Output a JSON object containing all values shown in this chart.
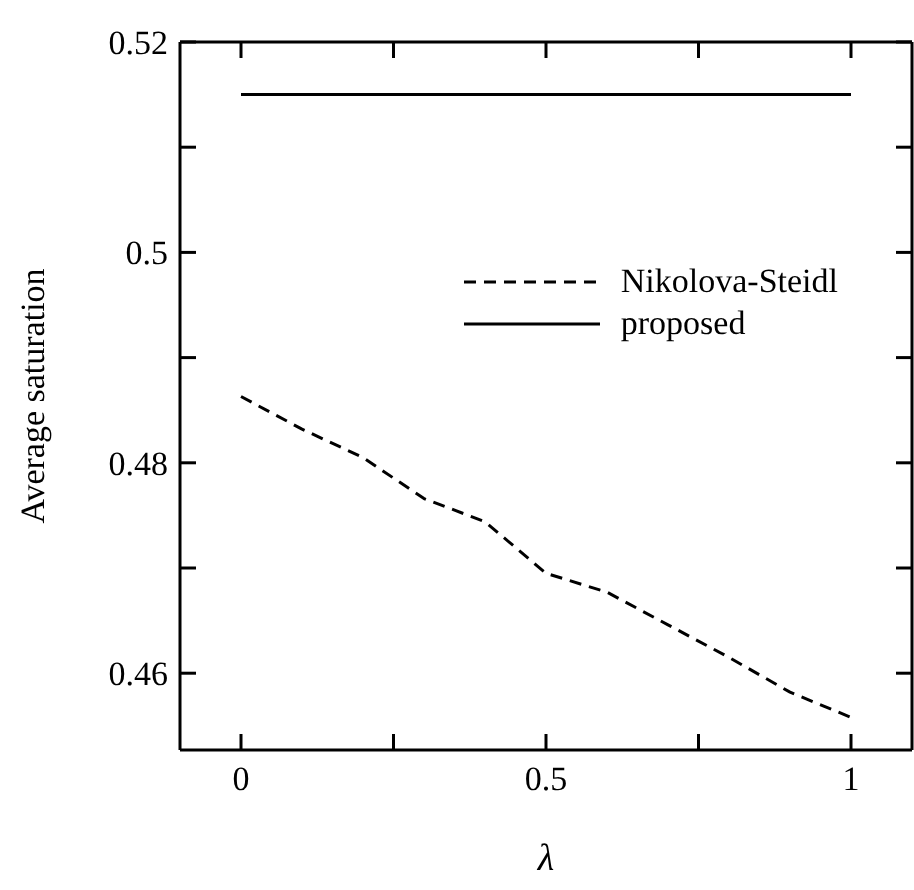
{
  "chart_data": {
    "type": "line",
    "xlabel": "λ",
    "ylabel": "Average saturation",
    "x": [
      0,
      0.1,
      0.2,
      0.3,
      0.4,
      0.5,
      0.6,
      0.7,
      0.8,
      0.9,
      1
    ],
    "series": [
      {
        "name": "Nikolova-Steidl",
        "color": "#000000",
        "line_style": "dashed",
        "values": [
          0.4863,
          0.4832,
          0.4805,
          0.4766,
          0.4744,
          0.4695,
          0.4677,
          0.4646,
          0.4615,
          0.4582,
          0.4558
        ]
      },
      {
        "name": "proposed",
        "color": "#000000",
        "line_style": "solid",
        "values": [
          0.515,
          0.515,
          0.515,
          0.515,
          0.515,
          0.515,
          0.515,
          0.515,
          0.515,
          0.515,
          0.515
        ]
      }
    ],
    "xlim": [
      -0.1,
      1.1
    ],
    "xticks": [
      0,
      {
        "value": 0.25,
        "label": null
      },
      0.5,
      {
        "value": 0.75,
        "label": null
      },
      1
    ],
    "ylim": [
      0.4527,
      0.52
    ],
    "yticks": [
      0.46,
      {
        "value": 0.47,
        "label": null
      },
      0.48,
      {
        "value": 0.49,
        "label": null
      },
      0.5,
      {
        "value": 0.51,
        "label": null
      },
      0.52
    ],
    "grid": false,
    "legend": "top right",
    "marker": "none"
  }
}
